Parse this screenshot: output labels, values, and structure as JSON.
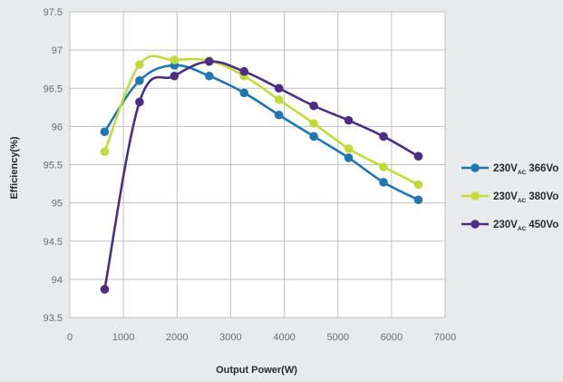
{
  "chart_data": {
    "type": "line",
    "xlabel": "Output Power(W)",
    "ylabel": "Efficiency(%)",
    "xlim": [
      0,
      7000
    ],
    "ylim": [
      93.5,
      97.5
    ],
    "x_ticks": [
      0,
      1000,
      2000,
      3000,
      4000,
      5000,
      6000,
      7000
    ],
    "y_ticks": [
      93.5,
      94,
      94.5,
      95,
      95.5,
      96,
      96.5,
      97,
      97.5
    ],
    "grid": true,
    "legend_position": "right",
    "series": [
      {
        "name": "230V",
        "name_sub": "AC",
        "name_suffix": "366Vo",
        "color": "#1f77b4",
        "x": [
          650,
          1300,
          1950,
          2600,
          3250,
          3900,
          4550,
          5200,
          5850,
          6500
        ],
        "y": [
          95.93,
          96.6,
          96.8,
          96.66,
          96.44,
          96.15,
          95.87,
          95.59,
          95.27,
          95.04
        ]
      },
      {
        "name": "230V",
        "name_sub": "AC",
        "name_suffix": "380Vo",
        "color": "#c3d93c",
        "x": [
          650,
          1300,
          1950,
          2600,
          3250,
          3900,
          4550,
          5200,
          5850,
          6500
        ],
        "y": [
          95.67,
          96.81,
          96.87,
          96.86,
          96.66,
          96.35,
          96.04,
          95.71,
          95.47,
          95.24
        ]
      },
      {
        "name": "230V",
        "name_sub": "AC",
        "name_suffix": "450Vo",
        "color": "#4b2e83",
        "x": [
          650,
          1300,
          1950,
          2600,
          3250,
          3900,
          4550,
          5200,
          5850,
          6500
        ],
        "y": [
          93.87,
          96.32,
          96.66,
          96.85,
          96.72,
          96.5,
          96.27,
          96.08,
          95.87,
          95.61
        ]
      }
    ]
  }
}
